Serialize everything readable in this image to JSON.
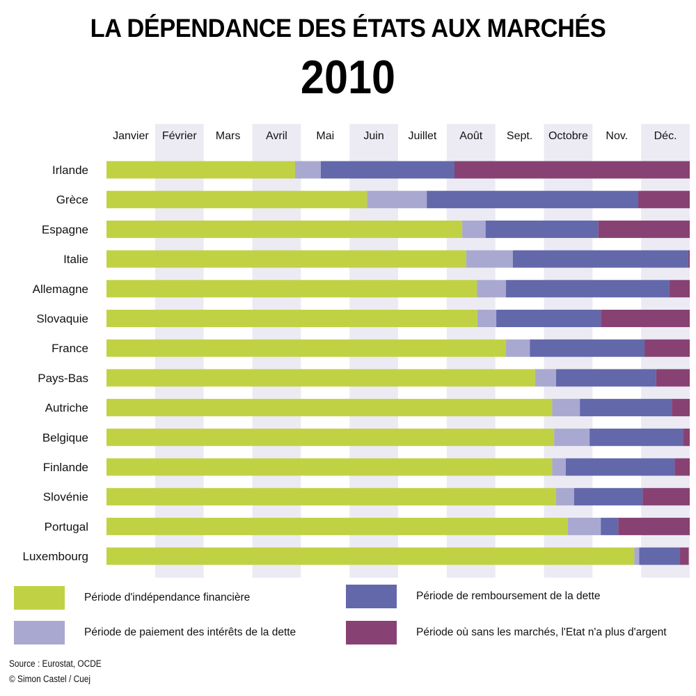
{
  "chart_data": {
    "type": "bar",
    "orientation": "horizontal",
    "stacked": true,
    "title": "LA DÉPENDANCE DES ÉTATS AUX MARCHÉS",
    "subtitle": "2010",
    "xlabel": "",
    "ylabel": "",
    "x_unit": "months",
    "xlim": [
      0,
      12
    ],
    "x_ticks": [
      "Janvier",
      "Février",
      "Mars",
      "Avril",
      "Mai",
      "Juin",
      "Juillet",
      "Août",
      "Sept.",
      "Octobre",
      "Nov.",
      "Déc."
    ],
    "shaded_months": [
      "Février",
      "Avril",
      "Juin",
      "Août",
      "Octobre",
      "Déc."
    ],
    "categories": [
      "Irlande",
      "Grèce",
      "Espagne",
      "Italie",
      "Allemagne",
      "Slovaquie",
      "France",
      "Pays-Bas",
      "Autriche",
      "Belgique",
      "Finlande",
      "Slovénie",
      "Portugal",
      "Luxembourg"
    ],
    "series": [
      {
        "name": "Période d'indépendance financière",
        "color": "#c0d244",
        "values": [
          3.88,
          5.36,
          7.32,
          7.4,
          7.62,
          7.63,
          8.22,
          8.82,
          9.17,
          9.21,
          9.17,
          9.25,
          9.49,
          10.86
        ]
      },
      {
        "name": "Période de paiement des intérêts de la dette",
        "color": "#a9a8d1",
        "values": [
          0.53,
          1.23,
          0.48,
          0.96,
          0.6,
          0.39,
          0.49,
          0.43,
          0.57,
          0.73,
          0.28,
          0.37,
          0.68,
          0.1
        ]
      },
      {
        "name": "Période de remboursement de la dette",
        "color": "#6268aa",
        "values": [
          2.75,
          4.35,
          2.32,
          3.61,
          3.36,
          2.15,
          2.36,
          2.06,
          1.89,
          1.92,
          2.24,
          1.41,
          0.36,
          0.84
        ]
      },
      {
        "name": "Période où sans les marchés, l'Etat n'a plus d'argent",
        "color": "#874273",
        "values": [
          4.84,
          1.06,
          1.88,
          0.03,
          0.42,
          1.83,
          0.93,
          0.69,
          0.37,
          0.14,
          0.31,
          0.97,
          1.47,
          0.18
        ]
      }
    ],
    "grid": "alternating month column shading",
    "legend_position": "bottom"
  },
  "colors": {
    "independence": "#c0d244",
    "interest": "#a9a8d1",
    "repayment": "#6268aa",
    "no_money": "#874273",
    "shade": "#ecebf4"
  },
  "legend": {
    "items": [
      {
        "label": "Période d'indépendance financière",
        "color": "#c0d244"
      },
      {
        "label": "Période de paiement des intérêts de la dette",
        "color": "#a9a8d1"
      },
      {
        "label": "Période de remboursement de la dette",
        "color": "#6268aa"
      },
      {
        "label": "Période où sans les marchés, l'Etat n'a plus d'argent",
        "color": "#874273"
      }
    ]
  },
  "footer": {
    "source": "Source : Eurostat, OCDE",
    "credit": "© Simon Castel / Cuej"
  }
}
